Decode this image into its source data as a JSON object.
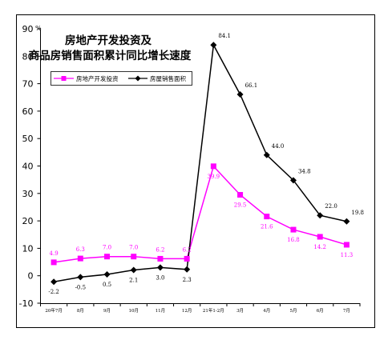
{
  "chart_data": {
    "type": "line",
    "title_line1": "房地产开发投资及",
    "title_line2": "商品房销售面积累计同比增长速度",
    "y_unit": "%",
    "ylim": [
      -10,
      90
    ],
    "y_ticks": [
      -10,
      0,
      10,
      20,
      30,
      40,
      50,
      60,
      70,
      80,
      90
    ],
    "categories": [
      "20年7月",
      "8月",
      "9月",
      "10月",
      "11月",
      "12月",
      "21年1-2月",
      "3月",
      "4月",
      "5月",
      "6月",
      "7月"
    ],
    "legend_position": "top-left",
    "grid": false,
    "series": [
      {
        "name": "房地产开发投资",
        "color": "#ff00ff",
        "marker": "square",
        "values": [
          4.9,
          6.3,
          7.0,
          7.0,
          6.2,
          6.2,
          39.9,
          29.5,
          21.6,
          16.8,
          14.2,
          11.3
        ]
      },
      {
        "name": "房屋销售面积",
        "color": "#000000",
        "marker": "diamond",
        "values": [
          -2.2,
          -0.5,
          0.5,
          2.1,
          3.0,
          2.3,
          84.1,
          66.1,
          44.0,
          34.8,
          22.0,
          19.8
        ]
      }
    ]
  }
}
